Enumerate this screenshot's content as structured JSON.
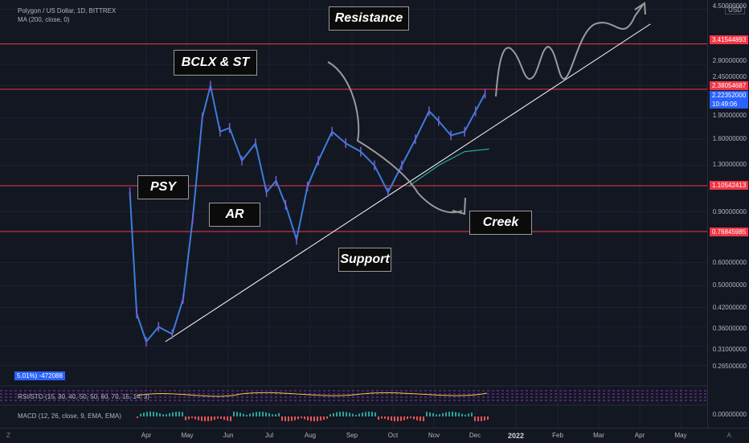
{
  "legend": {
    "symbol": "Polygon / US Dollar, 1D, BITTREX",
    "ma": "MA (200, close, 0)"
  },
  "indicators": {
    "rsi_stoch": "RSI/STO (15, 30, 40, 50, 50, 60, 70, 15, 14, 3)",
    "macd": "MACD (12, 26, close, 9, EMA, EMA)",
    "volume_badge": "5.01%) -472088"
  },
  "price_axis": {
    "currency": "USD",
    "ticks": [
      "4.50000000",
      "2.90000000",
      "2.45000000",
      "1.90000000",
      "1.60000000",
      "1.30000000",
      "0.90000000",
      "0.60000000",
      "0.50000000",
      "0.42000000",
      "0.36000000",
      "0.31000000",
      "0.26500000",
      "0.00000000"
    ],
    "labels": [
      {
        "text": "3.41544893",
        "color": "#f23645"
      },
      {
        "text": "2.38054687",
        "color": "#f23645"
      },
      {
        "text": "2.22352000",
        "color": "#2962ff"
      },
      {
        "text": "10:49:06",
        "color": "#2962ff"
      },
      {
        "text": "1.10542413",
        "color": "#f23645"
      },
      {
        "text": "0.76845985",
        "color": "#f23645"
      }
    ]
  },
  "time_axis": {
    "ticks": [
      "Apr",
      "May",
      "Jun",
      "Jul",
      "Aug",
      "Sep",
      "Oct",
      "Nov",
      "Dec",
      "2022",
      "Feb",
      "Mar",
      "Apr",
      "May"
    ]
  },
  "annotations": {
    "resistance": "Resistance",
    "bclx": "BCLX & ST",
    "psy": "PSY",
    "ar": "AR",
    "creek": "Creek",
    "support": "Support"
  },
  "footer": {
    "left": "Z",
    "right": "A"
  },
  "colors": {
    "background": "#131722",
    "candle_line": "#3b7ddd",
    "ma_line": "#26a69a",
    "level_line": "#f23645",
    "trend_line": "#ffffff"
  },
  "chart_data": {
    "type": "line",
    "series": [
      {
        "name": "Polygon / US Dollar",
        "x": [
          "2021-03-20",
          "2021-03-25",
          "2021-04-01",
          "2021-04-10",
          "2021-04-20",
          "2021-04-28",
          "2021-05-05",
          "2021-05-12",
          "2021-05-18",
          "2021-05-25",
          "2021-06-01",
          "2021-06-10",
          "2021-06-20",
          "2021-06-28",
          "2021-07-05",
          "2021-07-12",
          "2021-07-20",
          "2021-07-28",
          "2021-08-05",
          "2021-08-15",
          "2021-08-25",
          "2021-09-05",
          "2021-09-15",
          "2021-09-25",
          "2021-10-05",
          "2021-10-15",
          "2021-10-25",
          "2021-11-01",
          "2021-11-10",
          "2021-11-20",
          "2021-11-28",
          "2021-12-05"
        ],
        "y": [
          1.05,
          0.4,
          0.32,
          0.36,
          0.34,
          0.45,
          0.85,
          1.9,
          2.45,
          1.7,
          1.75,
          1.35,
          1.55,
          1.05,
          1.15,
          0.95,
          0.72,
          1.1,
          1.35,
          1.7,
          1.55,
          1.45,
          1.3,
          1.05,
          1.3,
          1.6,
          2.0,
          1.85,
          1.65,
          1.7,
          2.0,
          2.3
        ]
      },
      {
        "name": "MA (200, close, 0)",
        "x": [
          "2021-10-10",
          "2021-11-01",
          "2021-11-20",
          "2021-12-08"
        ],
        "y": [
          1.1,
          1.3,
          1.45,
          1.48
        ]
      }
    ],
    "levels": [
      3.41544893,
      2.38054687,
      1.10542413,
      0.76845985
    ],
    "trendline": {
      "x": [
        "2021-04-15",
        "2022-04-05"
      ],
      "y": [
        0.32,
        4.0
      ]
    },
    "ylim": [
      0.24,
      4.6
    ],
    "log_scale": true
  }
}
